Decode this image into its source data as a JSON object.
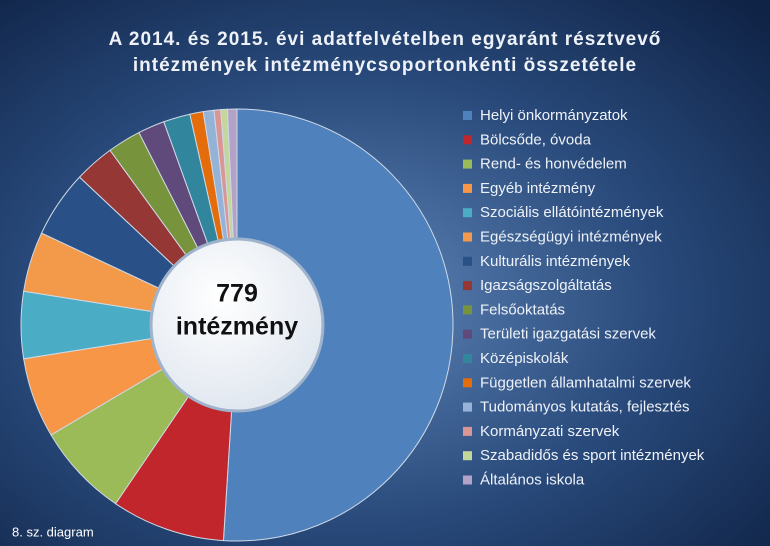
{
  "chart_data": {
    "type": "donut",
    "title": [
      "A 2014. és 2015. évi adatfelvételben egyaránt résztvevő",
      "intézmények intézménycsoportonkénti összetétele"
    ],
    "center_label": [
      "779",
      "intézmény"
    ],
    "footnote": "8. sz. diagram",
    "categories": [
      "Helyi önkormányzatok",
      "Bölcsőde, óvoda",
      "Rend- és honvédelem",
      "Egyéb intézmény",
      "Szociális ellátóintézmények",
      "Egészségügyi intézmények",
      "Kulturális intézmények",
      "Igazságszolgáltatás",
      "Felsőoktatás",
      "Területi igazgatási szervek",
      "Középiskolák",
      "Független államhatalmi szervek",
      "Tudományos kutatás, fejlesztés",
      "Kormányzati szervek",
      "Szabadidős és sport intézmények",
      "Általános iskola"
    ],
    "values": [
      51,
      8.5,
      7,
      6,
      5,
      4.5,
      5,
      3,
      2.5,
      2,
      2,
      1,
      0.8,
      0.5,
      0.5,
      0.7
    ],
    "colors": [
      "#4f81bd",
      "#c0262b",
      "#9bbb59",
      "#f79646",
      "#4bacc6",
      "#f39a4a",
      "#2a5187",
      "#953735",
      "#77933c",
      "#604a7b",
      "#31859c",
      "#e46c0a",
      "#95b3d7",
      "#d99694",
      "#c3d69b",
      "#b3a2c7"
    ],
    "legend": "right"
  }
}
